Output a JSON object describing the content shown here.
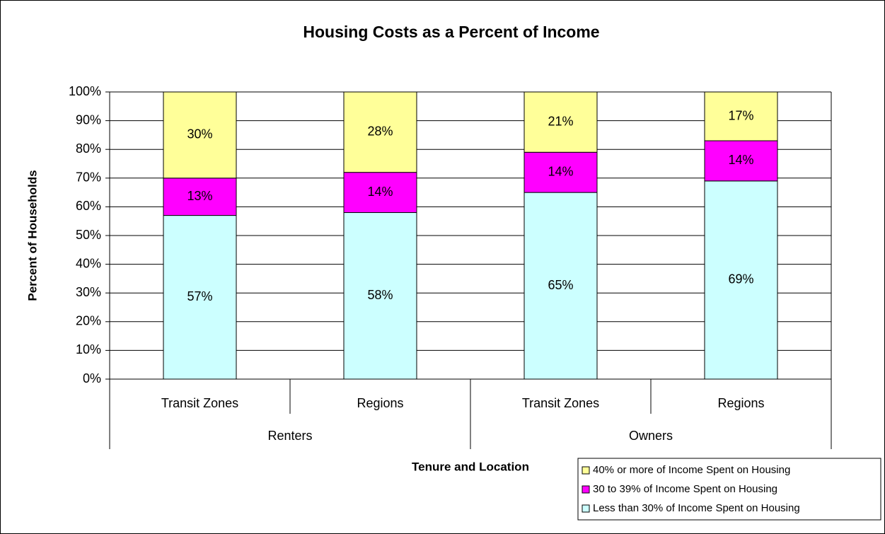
{
  "chart_data": {
    "type": "stacked-bar",
    "title": "Housing Costs as a Percent of Income",
    "y_label": "Percent of Households",
    "x_label": "Tenure and Location",
    "groups": [
      {
        "name": "Renters",
        "categories": [
          "Transit Zones",
          "Regions"
        ]
      },
      {
        "name": "Owners",
        "categories": [
          "Transit Zones",
          "Regions"
        ]
      }
    ],
    "series": [
      {
        "name": "Less than 30% of Income Spent on Housing",
        "color": "#ccffff",
        "values": [
          57,
          58,
          65,
          69
        ],
        "value_labels": [
          "57%",
          "58%",
          "65%",
          "69%"
        ]
      },
      {
        "name": "30 to 39% of Income Spent on Housing",
        "color": "#ff00ff",
        "values": [
          13,
          14,
          14,
          14
        ],
        "value_labels": [
          "13%",
          "14%",
          "14%",
          "14%"
        ]
      },
      {
        "name": "40% or more of Income Spent on Housing",
        "color": "#ffff99",
        "values": [
          30,
          28,
          21,
          17
        ],
        "value_labels": [
          "30%",
          "28%",
          "21%",
          "17%"
        ]
      }
    ],
    "ylim": [
      0,
      100
    ],
    "yticks": [
      {
        "value": 0,
        "label": "0%"
      },
      {
        "value": 10,
        "label": "10%"
      },
      {
        "value": 20,
        "label": "20%"
      },
      {
        "value": 30,
        "label": "30%"
      },
      {
        "value": 40,
        "label": "40%"
      },
      {
        "value": 50,
        "label": "50%"
      },
      {
        "value": 60,
        "label": "60%"
      },
      {
        "value": 70,
        "label": "70%"
      },
      {
        "value": 80,
        "label": "80%"
      },
      {
        "value": 90,
        "label": "90%"
      },
      {
        "value": 100,
        "label": "100%"
      }
    ],
    "grid": true,
    "legend": "bottom-right"
  }
}
